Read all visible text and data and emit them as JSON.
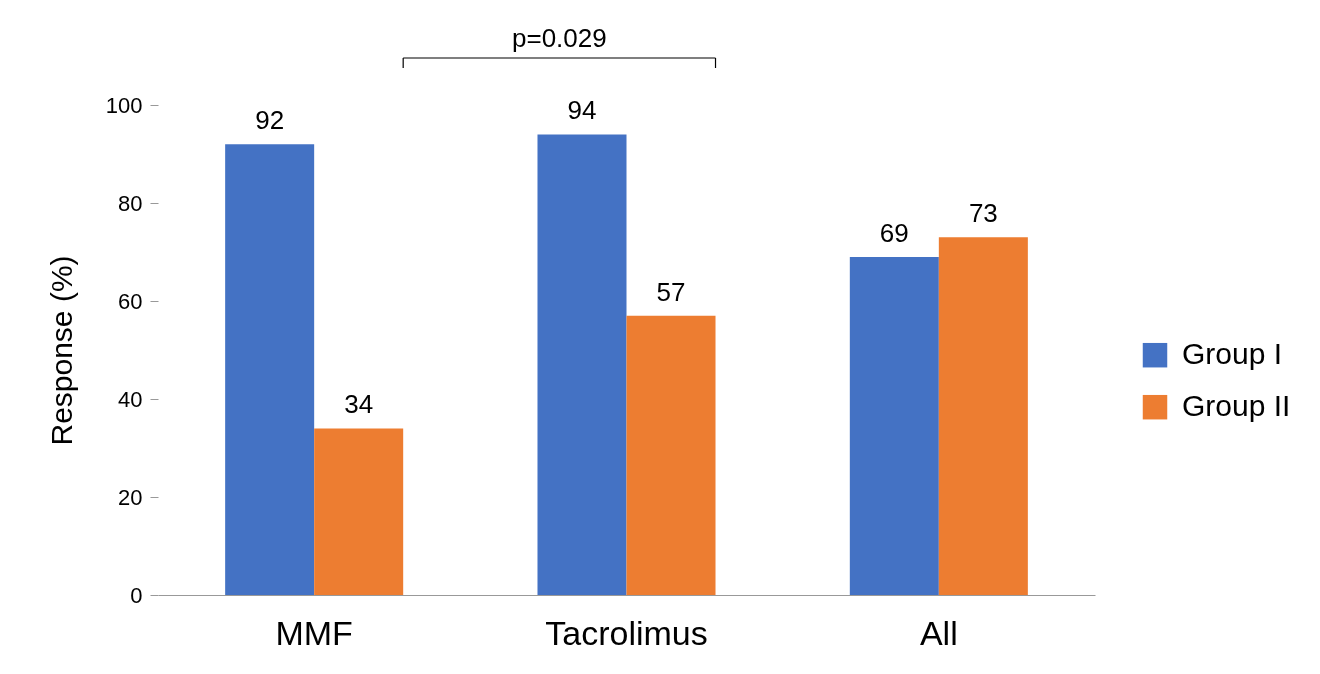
{
  "chart_data": {
    "type": "bar",
    "ylabel": "Response (%)",
    "categories": [
      "MMF",
      "Tacrolimus",
      "All"
    ],
    "series": [
      {
        "name": "Group I",
        "color": "#4472c4",
        "values": [
          92,
          94,
          69
        ]
      },
      {
        "name": "Group II",
        "color": "#ed7d31",
        "values": [
          34,
          57,
          73
        ]
      }
    ],
    "ylim": [
      0,
      100
    ],
    "yticks": [
      0,
      20,
      40,
      60,
      80,
      100
    ],
    "grid": false,
    "legend": "right",
    "data_labels": true,
    "annotations": [
      "p=0.029"
    ]
  }
}
